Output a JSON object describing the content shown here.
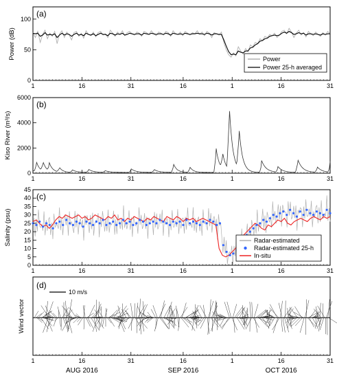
{
  "chart_data": [
    {
      "panel": "(a)",
      "type": "line",
      "ylabel": "Power (dB)",
      "ylim": [
        0,
        120
      ],
      "yticks": [
        0,
        50,
        100
      ],
      "xticks": [
        "1",
        "16",
        "31",
        "16",
        "1",
        "16",
        "31"
      ],
      "legend": [
        "Power",
        "Power 25-h averaged"
      ],
      "legend_position": "bottom-right",
      "colors": {
        "raw": "#b0b0b0",
        "avg": "#000000"
      },
      "series": [
        {
          "name": "Power",
          "values": [
            78,
            70,
            80,
            62,
            75,
            82,
            68,
            77,
            72,
            80,
            60,
            76,
            81,
            70,
            79,
            74,
            66,
            78,
            80,
            72,
            77,
            69,
            81,
            75,
            73,
            79,
            71,
            78,
            80,
            74,
            76,
            70,
            82,
            77,
            72,
            79,
            75,
            81,
            73,
            78,
            80,
            76,
            74,
            79,
            77,
            72,
            80,
            78,
            75,
            81,
            76,
            73,
            79,
            77,
            74,
            80,
            78,
            72,
            81,
            76,
            75,
            79,
            73,
            80,
            77,
            74,
            78,
            76,
            81,
            75,
            79,
            73,
            80,
            77,
            70,
            78,
            76,
            74,
            79,
            62,
            50,
            42,
            38,
            45,
            40,
            55,
            48,
            43,
            52,
            47,
            58,
            55,
            62,
            60,
            68,
            65,
            72,
            70,
            75,
            73,
            77,
            70,
            74,
            80,
            82,
            76,
            85,
            79,
            70,
            77,
            82,
            74,
            78,
            71,
            80,
            76,
            73,
            79,
            75,
            72,
            78,
            74,
            80,
            76
          ]
        },
        {
          "name": "Power 25-h averaged",
          "values": [
            77,
            76,
            77,
            72,
            74,
            78,
            74,
            75,
            74,
            76,
            70,
            74,
            77,
            74,
            76,
            75,
            72,
            75,
            77,
            74,
            75,
            73,
            77,
            75,
            74,
            76,
            73,
            75,
            77,
            75,
            75,
            73,
            77,
            76,
            74,
            76,
            75,
            77,
            74,
            75,
            77,
            76,
            75,
            76,
            76,
            74,
            77,
            76,
            75,
            77,
            76,
            75,
            76,
            76,
            75,
            77,
            76,
            74,
            77,
            76,
            75,
            76,
            75,
            77,
            76,
            75,
            76,
            76,
            77,
            76,
            76,
            75,
            77,
            76,
            74,
            76,
            76,
            75,
            75,
            66,
            56,
            47,
            42,
            43,
            42,
            48,
            46,
            45,
            48,
            48,
            53,
            54,
            58,
            60,
            64,
            65,
            68,
            69,
            72,
            73,
            74,
            73,
            74,
            77,
            79,
            77,
            80,
            78,
            75,
            76,
            78,
            76,
            77,
            74,
            76,
            76,
            75,
            76,
            75,
            74,
            76,
            75,
            76,
            76
          ]
        }
      ]
    },
    {
      "panel": "(b)",
      "type": "line",
      "ylabel": "Kiso River (m³/s)",
      "ylim": [
        0,
        6000
      ],
      "yticks": [
        0,
        2000,
        4000,
        6000
      ],
      "xticks": [
        "1",
        "16",
        "31",
        "16",
        "1",
        "16",
        "31"
      ],
      "series": [
        {
          "name": "",
          "events": [
            [
              0,
              150,
              3
            ],
            [
              1,
              850,
              3
            ],
            [
              3,
              800,
              3
            ],
            [
              5,
              650,
              3
            ],
            [
              8,
              400,
              3
            ],
            [
              12,
              200,
              4
            ],
            [
              17,
              250,
              4
            ],
            [
              22,
              150,
              4
            ],
            [
              30,
              300,
              4
            ],
            [
              37,
              250,
              4
            ],
            [
              43,
              700,
              3
            ],
            [
              48,
              450,
              3
            ],
            [
              56,
              2100,
              3
            ],
            [
              58,
              1400,
              3
            ],
            [
              60,
              5700,
              3
            ],
            [
              63,
              3550,
              3
            ],
            [
              70,
              950,
              4
            ],
            [
              75,
              450,
              4
            ],
            [
              81,
              1100,
              4
            ],
            [
              87,
              450,
              4
            ],
            [
              91,
              850,
              4
            ],
            [
              97,
              300,
              4
            ],
            [
              103,
              700,
              4
            ]
          ],
          "base": 60
        }
      ]
    },
    {
      "panel": "(c)",
      "type": "line",
      "ylabel": "Salinity (psu)",
      "ylim": [
        0,
        45
      ],
      "yticks": [
        0,
        5,
        10,
        15,
        20,
        25,
        30,
        35,
        40,
        45
      ],
      "xticks": [
        "1",
        "16",
        "31",
        "16",
        "1",
        "16",
        "31"
      ],
      "legend": [
        "Radar-estimated",
        "Radar-estimated 25-h",
        "In-situ"
      ],
      "legend_position": "bottom-right",
      "colors": {
        "raw": "#b0b0b0",
        "avg": "#3366ff",
        "insitu": "#ee2222"
      },
      "series": [
        {
          "name": "Radar-estimated 25-h",
          "values": [
            25,
            24,
            26,
            23,
            25,
            24,
            22,
            25,
            26,
            24,
            27,
            25,
            24,
            26,
            25,
            23,
            26,
            25,
            24,
            26,
            25,
            27,
            24,
            25,
            26,
            24,
            25,
            27,
            25,
            26,
            24,
            25,
            27,
            26,
            24,
            25,
            26,
            25,
            27,
            26,
            25,
            24,
            26,
            25,
            26,
            24,
            27,
            25,
            26,
            25,
            24,
            26,
            25,
            27,
            26,
            24,
            25,
            12,
            8,
            6,
            7,
            9,
            12,
            15,
            18,
            20,
            22,
            24,
            25,
            27,
            26,
            28,
            30,
            29,
            31,
            32,
            30,
            33,
            31,
            29,
            32,
            30,
            33,
            31,
            30,
            32,
            31,
            30,
            33,
            31
          ]
        },
        {
          "name": "In-situ",
          "values": [
            26,
            27,
            25,
            23,
            24,
            22,
            24,
            27,
            29,
            28,
            30,
            29,
            28,
            29,
            30,
            28,
            29,
            27,
            28,
            30,
            29,
            28,
            27,
            29,
            28,
            30,
            27,
            28,
            26,
            28,
            27,
            29,
            28,
            27,
            26,
            28,
            27,
            29,
            28,
            27,
            26,
            29,
            28,
            27,
            29,
            28,
            26,
            28,
            27,
            28,
            26,
            27,
            28,
            27,
            26,
            25,
            24,
            10,
            6,
            5,
            6,
            8,
            10,
            14,
            17,
            19,
            21,
            23,
            25,
            24,
            22,
            21,
            24,
            23,
            25,
            27,
            26,
            28,
            25,
            24,
            26,
            27,
            28,
            27,
            26,
            28,
            29,
            28,
            27,
            29,
            28,
            29
          ]
        }
      ]
    },
    {
      "panel": "(d)",
      "type": "line",
      "ylabel": "Wind vector",
      "scale_label": "10 m/s",
      "xticks": [
        "1",
        "16",
        "31",
        "16",
        "1",
        "16",
        "31"
      ],
      "months": [
        "AUG 2016",
        "SEP 2016",
        "OCT 2016"
      ]
    }
  ]
}
